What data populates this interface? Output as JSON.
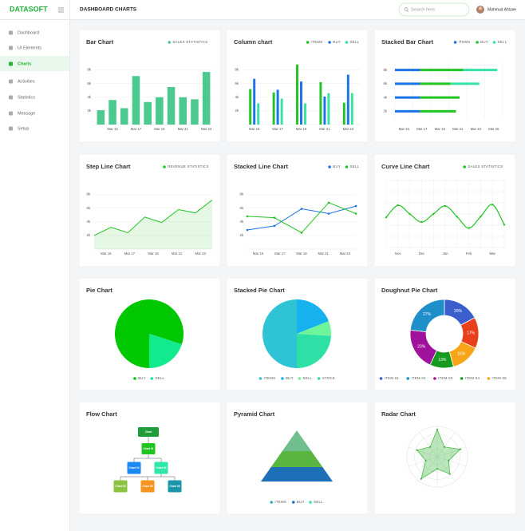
{
  "header": {
    "logo": "DATASOFT",
    "title": "DASHBOARD CHARTS",
    "search_placeholder": "Search here",
    "user": "Mahmud Ahsan"
  },
  "sidebar": {
    "items": [
      "Dashboard",
      "UI Elements",
      "Charts",
      "Activities",
      "Statistics",
      "Message",
      "Setup"
    ],
    "active": 2
  },
  "chart_data": [
    {
      "type": "bar",
      "title": "Bar Chart",
      "legend": "top-right",
      "grid": true,
      "categories": [
        null,
        "Mar 15",
        null,
        "Mar 17",
        null,
        "Mar 19",
        null,
        "Mar 21",
        null,
        "Mar 23"
      ],
      "series": [
        {
          "name": "SALES STATISTICS",
          "color": "#4cc98f",
          "values": [
            2100,
            3600,
            2400,
            7100,
            3300,
            4000,
            5500,
            4000,
            3700,
            7700
          ]
        }
      ],
      "ylim": [
        0,
        9000
      ],
      "yticks": [
        {
          "value": 2000,
          "label": "2k"
        },
        {
          "value": 4000,
          "label": "4k"
        },
        {
          "value": 6000,
          "label": "6k"
        },
        {
          "value": 8000,
          "label": "8k"
        }
      ]
    },
    {
      "type": "bar",
      "title": "Column chart",
      "legend": "top-right",
      "grid": true,
      "categories": [
        "Mar 15",
        "Mar 17",
        "Mar 19",
        "Mar 21",
        "Mar 23"
      ],
      "series": [
        {
          "name": "ITEMS",
          "color": "#22c322",
          "values": [
            5200,
            4700,
            8800,
            6200,
            3200
          ]
        },
        {
          "name": "BUY",
          "color": "#1a73e8",
          "values": [
            6700,
            5100,
            6300,
            4100,
            7300
          ]
        },
        {
          "name": "SELL",
          "color": "#36e3a4",
          "values": [
            3100,
            3800,
            3100,
            4600,
            4600
          ]
        }
      ],
      "ylim": [
        0,
        9000
      ],
      "yticks": [
        {
          "value": 2000,
          "label": "2k"
        },
        {
          "value": 4000,
          "label": "4k"
        },
        {
          "value": 6000,
          "label": "6k"
        },
        {
          "value": 8000,
          "label": "8k"
        }
      ]
    },
    {
      "type": "barh",
      "title": "Stacked Bar Chart",
      "legend": "top-right",
      "grid": true,
      "categories": [
        "8k",
        "6k",
        "4k",
        "2k"
      ],
      "x_labels": [
        "Mar 15",
        "Mar 17",
        "Mar 19",
        "Mar 21",
        "Mar 23",
        "Mar 25"
      ],
      "series": [
        {
          "name": "ITEMS",
          "color": "#1a73e8",
          "values": [
            1.4,
            1.4,
            1.4,
            1.4
          ]
        },
        {
          "name": "BUY",
          "color": "#22c322",
          "values": [
            2.4,
            1.7,
            2.2,
            2.0
          ]
        },
        {
          "name": "SELL",
          "color": "#36e3a4",
          "values": [
            1.9,
            1.6,
            0,
            0
          ]
        }
      ],
      "xlim": [
        0,
        6
      ]
    },
    {
      "type": "area",
      "title": "Step Line Chart",
      "legend": "top-right",
      "grid": true,
      "x_labels": [
        "Mar 15",
        "Mar 17",
        "Mar 19",
        "Mar 21",
        "Mar 23"
      ],
      "series": [
        {
          "name": "REVENUE STATISTICS",
          "color": "#22c322",
          "values": [
            2000,
            3200,
            2400,
            4700,
            3900,
            5800,
            5300,
            7200
          ]
        }
      ],
      "ylim": [
        0,
        9000
      ],
      "yticks": [
        {
          "value": 2000,
          "label": "2k"
        },
        {
          "value": 4000,
          "label": "4k"
        },
        {
          "value": 6000,
          "label": "6k"
        },
        {
          "value": 8000,
          "label": "8k"
        }
      ]
    },
    {
      "type": "line",
      "title": "Stacked Line Chart",
      "legend": "top-right",
      "grid": true,
      "x_labels": [
        "Mar 15",
        "Mar 17",
        "Mar 19",
        "Mar 21",
        "Mar 23"
      ],
      "series": [
        {
          "name": "BUY",
          "color": "#1a73e8",
          "values": [
            2800,
            3400,
            5900,
            5200,
            6300
          ]
        },
        {
          "name": "SELL",
          "color": "#22c322",
          "values": [
            4800,
            4600,
            2400,
            6800,
            5200
          ]
        }
      ],
      "ylim": [
        0,
        9000
      ],
      "yticks": [
        {
          "value": 2000,
          "label": "2k"
        },
        {
          "value": 4000,
          "label": "4k"
        },
        {
          "value": 6000,
          "label": "6k"
        },
        {
          "value": 8000,
          "label": "8k"
        }
      ]
    },
    {
      "type": "spline",
      "title": "Curve Line Chart",
      "legend": "top-right",
      "grid": true,
      "x_labels": [
        "Nov",
        "Dec",
        "Jan",
        "Feb",
        "Mar"
      ],
      "series": [
        {
          "name": "SALES STATISTICS",
          "color": "#22c322",
          "values": [
            4.5,
            6.3,
            5.0,
            3.8,
            5.0,
            6.2,
            4.6,
            2.9,
            4.6,
            6.4,
            3.4
          ]
        }
      ],
      "ylim": [
        0,
        10
      ]
    },
    {
      "type": "pie",
      "title": "Pie Chart",
      "legend": "bottom",
      "categories": [
        "BUY",
        "SELL"
      ],
      "values": [
        80,
        20
      ],
      "colors": [
        "#00c800",
        "#12ea8e"
      ]
    },
    {
      "type": "pie",
      "title": "Stacked Pie Chart",
      "legend": "bottom",
      "categories": [
        "ITEMS",
        "BUY",
        "SELL",
        "STOCK"
      ],
      "values": [
        50,
        19,
        7,
        24
      ],
      "colors": [
        "#2ec4d6",
        "#16b2ef",
        "#6ef59a",
        "#2de0a6"
      ]
    },
    {
      "type": "doughnut",
      "title": "Doughnut Pie Chart",
      "legend": "bottom",
      "values": [
        20,
        17,
        16,
        13,
        23,
        27
      ],
      "value_labels": [
        "20%",
        "17%",
        "16%",
        "13%",
        "23%",
        "27%"
      ],
      "colors": [
        "#3a5fcd",
        "#e8401c",
        "#f7a516",
        "#159c20",
        "#a0129b",
        "#1f8fc9"
      ],
      "series": [
        {
          "name": "ITEM 01",
          "color": "#3a5fcd"
        },
        {
          "name": "ITEM 02",
          "color": "#1f8fc9"
        },
        {
          "name": "ITEM 03",
          "color": "#a0129b"
        },
        {
          "name": "ITEM 04",
          "color": "#159c20"
        },
        {
          "name": "ITEM 05",
          "color": "#f7a516"
        }
      ]
    },
    {
      "type": "flow",
      "title": "Flow Chart",
      "nodes": [
        {
          "label": "Chart",
          "color": "#1f9d3a"
        },
        {
          "label": "Chart 01",
          "color": "#1fc41f"
        },
        {
          "label": "Chart 02",
          "color": "#1a88f0"
        },
        {
          "label": "Chart 03",
          "color": "#2ee6a8"
        },
        {
          "label": "Chart 04",
          "color": "#8ac43f"
        },
        {
          "label": "Chart 05",
          "color": "#f7941d"
        },
        {
          "label": "Chart 06",
          "color": "#1a96a8"
        }
      ]
    },
    {
      "type": "pyramid",
      "title": "Pyramid Chart",
      "legend": "bottom",
      "colors": [
        "#72bf8e",
        "#5ab641",
        "#1d6fb8"
      ],
      "series": [
        {
          "name": "ITEMS",
          "color": "#2ab0c0"
        },
        {
          "name": "BUY",
          "color": "#1a6fd0"
        },
        {
          "name": "SELL",
          "color": "#2ee6a8"
        }
      ]
    },
    {
      "type": "radar",
      "title": "Radar Chart",
      "color": "#3cb43c",
      "values": [
        9,
        4,
        8,
        4,
        7,
        4,
        9,
        4,
        7,
        4
      ],
      "rlim": [
        0,
        10
      ]
    }
  ]
}
